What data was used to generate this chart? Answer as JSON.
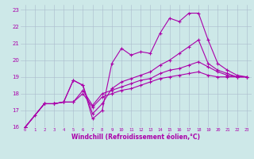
{
  "xlabel": "Windchill (Refroidissement éolien,°C)",
  "xlim": [
    -0.5,
    23.5
  ],
  "ylim": [
    16,
    23.3
  ],
  "yticks": [
    16,
    17,
    18,
    19,
    20,
    21,
    22,
    23
  ],
  "xticks": [
    0,
    1,
    2,
    3,
    4,
    5,
    6,
    7,
    8,
    9,
    10,
    11,
    12,
    13,
    14,
    15,
    16,
    17,
    18,
    19,
    20,
    21,
    22,
    23
  ],
  "background_color": "#cde8e8",
  "line_color": "#aa00aa",
  "grid_color": "#aabbcc",
  "lines": [
    {
      "x": [
        0,
        1,
        2,
        3,
        4,
        5,
        6,
        7,
        8,
        9,
        10,
        11,
        12,
        13,
        14,
        15,
        16,
        17,
        18,
        19,
        20,
        21,
        22,
        23
      ],
      "y": [
        16.0,
        16.7,
        17.4,
        17.4,
        17.5,
        18.8,
        18.5,
        16.5,
        17.0,
        19.8,
        20.7,
        20.3,
        20.5,
        20.4,
        21.6,
        22.5,
        22.3,
        22.8,
        22.8,
        21.2,
        19.8,
        19.4,
        19.1,
        19.0
      ]
    },
    {
      "x": [
        0,
        2,
        3,
        4,
        5,
        6,
        7,
        8,
        9,
        10,
        11,
        12,
        13,
        14,
        15,
        16,
        17,
        18,
        19,
        20,
        21,
        22,
        23
      ],
      "y": [
        16.0,
        17.4,
        17.4,
        17.5,
        18.8,
        18.5,
        16.8,
        17.4,
        18.3,
        18.7,
        18.9,
        19.1,
        19.3,
        19.7,
        20.0,
        20.4,
        20.8,
        21.2,
        19.8,
        19.4,
        19.2,
        19.0,
        19.0
      ]
    },
    {
      "x": [
        0,
        2,
        3,
        4,
        5,
        6,
        7,
        8,
        9,
        10,
        11,
        12,
        13,
        14,
        15,
        16,
        17,
        18,
        19,
        20,
        21,
        22,
        23
      ],
      "y": [
        16.0,
        17.4,
        17.4,
        17.5,
        17.5,
        18.2,
        17.3,
        18.0,
        18.2,
        18.4,
        18.6,
        18.8,
        18.9,
        19.2,
        19.4,
        19.5,
        19.7,
        19.9,
        19.6,
        19.3,
        19.1,
        19.0,
        19.0
      ]
    },
    {
      "x": [
        0,
        2,
        3,
        4,
        5,
        6,
        7,
        8,
        9,
        10,
        11,
        12,
        13,
        14,
        15,
        16,
        17,
        18,
        19,
        20,
        21,
        22,
        23
      ],
      "y": [
        16.0,
        17.4,
        17.4,
        17.5,
        17.5,
        18.0,
        17.2,
        17.8,
        18.0,
        18.2,
        18.3,
        18.5,
        18.7,
        18.9,
        19.0,
        19.1,
        19.2,
        19.3,
        19.1,
        19.0,
        19.0,
        19.0,
        19.0
      ]
    }
  ]
}
